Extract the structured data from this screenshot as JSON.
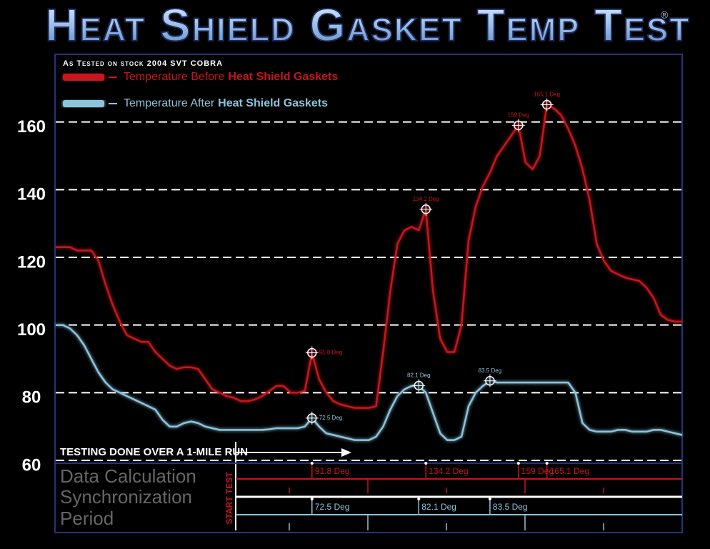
{
  "chart_data": {
    "type": "line",
    "title": "Heat Shield Gasket Temp Test",
    "title_mark": "®",
    "subtitle": "As Tested on stock 2004 SVT COBRA",
    "annotation": "TESTING DONE OVER A 1-MILE RUN",
    "start_label": "START TEST",
    "panel_lines": [
      "Data Calculation",
      "Synchronization",
      "Period"
    ],
    "ylim": [
      60,
      180
    ],
    "yticks": [
      60,
      80,
      100,
      120,
      140,
      160
    ],
    "grid": true,
    "series": [
      {
        "name": "Temperature Before",
        "name_bold": "Heat Shield Gaskets",
        "color": "#c8141c",
        "values": [
          123,
          123,
          123,
          122,
          122,
          122,
          119,
          112,
          106,
          101,
          97,
          96,
          95,
          95,
          92,
          90,
          88,
          87,
          87.5,
          87.5,
          87,
          84,
          81,
          80,
          79,
          78.5,
          77.5,
          77.5,
          78,
          79,
          80.5,
          82,
          82,
          80,
          80,
          80.5,
          91.8,
          84,
          80,
          77.5,
          76.5,
          76,
          75.5,
          75.5,
          75.5,
          76,
          92,
          110,
          124,
          128,
          129,
          128,
          134.2,
          110,
          96,
          92,
          92,
          100,
          125,
          135,
          141,
          145,
          150,
          153,
          156,
          159,
          148,
          146,
          150,
          165.1,
          164,
          162,
          158,
          153,
          146,
          137,
          124,
          119,
          116,
          115,
          114,
          113.5,
          113,
          111,
          108,
          103,
          101.5,
          101,
          101
        ],
        "value_labels": [
          null,
          null,
          null,
          null,
          null,
          null,
          null,
          null,
          null,
          null,
          null,
          null,
          null,
          null,
          null,
          null,
          null,
          null,
          null,
          null,
          null,
          null,
          null,
          null,
          null,
          null,
          null,
          null,
          null,
          null,
          null,
          null,
          null,
          null,
          null,
          null,
          "91.8 Deg",
          null,
          null,
          null,
          null,
          null,
          null,
          null,
          null,
          null,
          null,
          null,
          null,
          null,
          null,
          null,
          "134.2 Deg",
          null,
          null,
          null,
          null,
          null,
          null,
          null,
          null,
          null,
          null,
          null,
          null,
          "159 Deg",
          null,
          null,
          null,
          "165.1 Deg",
          null,
          null,
          null,
          null,
          null,
          null,
          null,
          null,
          null,
          null,
          null,
          null,
          null,
          null,
          null,
          null,
          null,
          null,
          null
        ]
      },
      {
        "name": "Temperature After",
        "name_bold": "Heat Shield Gaskets",
        "color": "#8cc4dc",
        "values": [
          100,
          100,
          99,
          97,
          94,
          90,
          86,
          83,
          81,
          80,
          79,
          78,
          77,
          76,
          75,
          72,
          70,
          70,
          71,
          71.5,
          71,
          70,
          69.5,
          69,
          69,
          69,
          69,
          69,
          69,
          69,
          69.2,
          69.5,
          69.5,
          69.5,
          69.5,
          70,
          72.5,
          70,
          68,
          67.5,
          67,
          66.5,
          66,
          66,
          66,
          67,
          70,
          75,
          79,
          81,
          82,
          82.1,
          80,
          74,
          68,
          66,
          66,
          67,
          76,
          80,
          82,
          83.5,
          83,
          83,
          83,
          83,
          83,
          83,
          83,
          83,
          83,
          83,
          83,
          80,
          71,
          69,
          68.5,
          68.5,
          68.5,
          69,
          69,
          68.5,
          68.5,
          68.5,
          69,
          69,
          68.5,
          68,
          67.5
        ],
        "value_labels": [
          null,
          null,
          null,
          null,
          null,
          null,
          null,
          null,
          null,
          null,
          null,
          null,
          null,
          null,
          null,
          null,
          null,
          null,
          null,
          null,
          null,
          null,
          null,
          null,
          null,
          null,
          null,
          null,
          null,
          null,
          null,
          null,
          null,
          null,
          null,
          null,
          "72.5 Deg",
          null,
          null,
          null,
          null,
          null,
          null,
          null,
          null,
          null,
          null,
          null,
          null,
          null,
          null,
          "82.1 Deg",
          null,
          null,
          null,
          null,
          null,
          null,
          null,
          null,
          null,
          "83.5 Deg",
          null,
          null,
          null,
          null,
          null,
          null,
          null,
          null,
          null,
          null,
          null,
          null,
          null,
          null,
          null,
          null,
          null,
          null,
          null,
          null,
          null,
          null,
          null,
          null,
          null,
          null,
          null
        ]
      }
    ]
  }
}
